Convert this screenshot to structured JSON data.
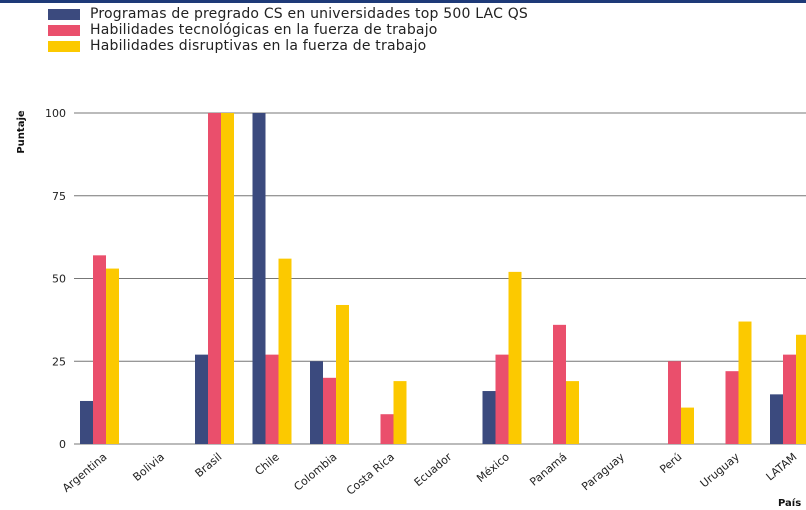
{
  "chart_data": {
    "type": "bar",
    "xlabel": "País",
    "ylabel": "Puntaje",
    "ylim": [
      0,
      100
    ],
    "yticks": [
      0,
      25,
      50,
      75,
      100
    ],
    "grid": true,
    "legend_position": "top-left",
    "categories": [
      "Argentina",
      "Bolivia",
      "Brasil",
      "Chile",
      "Colombia",
      "Costa Rica",
      "Ecuador",
      "México",
      "Panamá",
      "Paraguay",
      "Perú",
      "Uruguay",
      "LATAM"
    ],
    "series": [
      {
        "name": "Programas de pregrado CS en universidades top 500 LAC QS",
        "color": "#3b4a7e",
        "values": [
          13,
          null,
          27,
          100,
          25,
          null,
          null,
          16,
          null,
          null,
          null,
          null,
          15
        ]
      },
      {
        "name": "Habilidades tecnológicas en la fuerza de trabajo",
        "color": "#ea4f6c",
        "values": [
          57,
          null,
          100,
          27,
          20,
          9,
          null,
          27,
          36,
          null,
          25,
          22,
          27
        ]
      },
      {
        "name": "Habilidades disruptivas en la fuerza de trabajo",
        "color": "#fcc900",
        "values": [
          53,
          null,
          100,
          56,
          42,
          19,
          null,
          52,
          19,
          null,
          11,
          37,
          33
        ]
      }
    ]
  }
}
